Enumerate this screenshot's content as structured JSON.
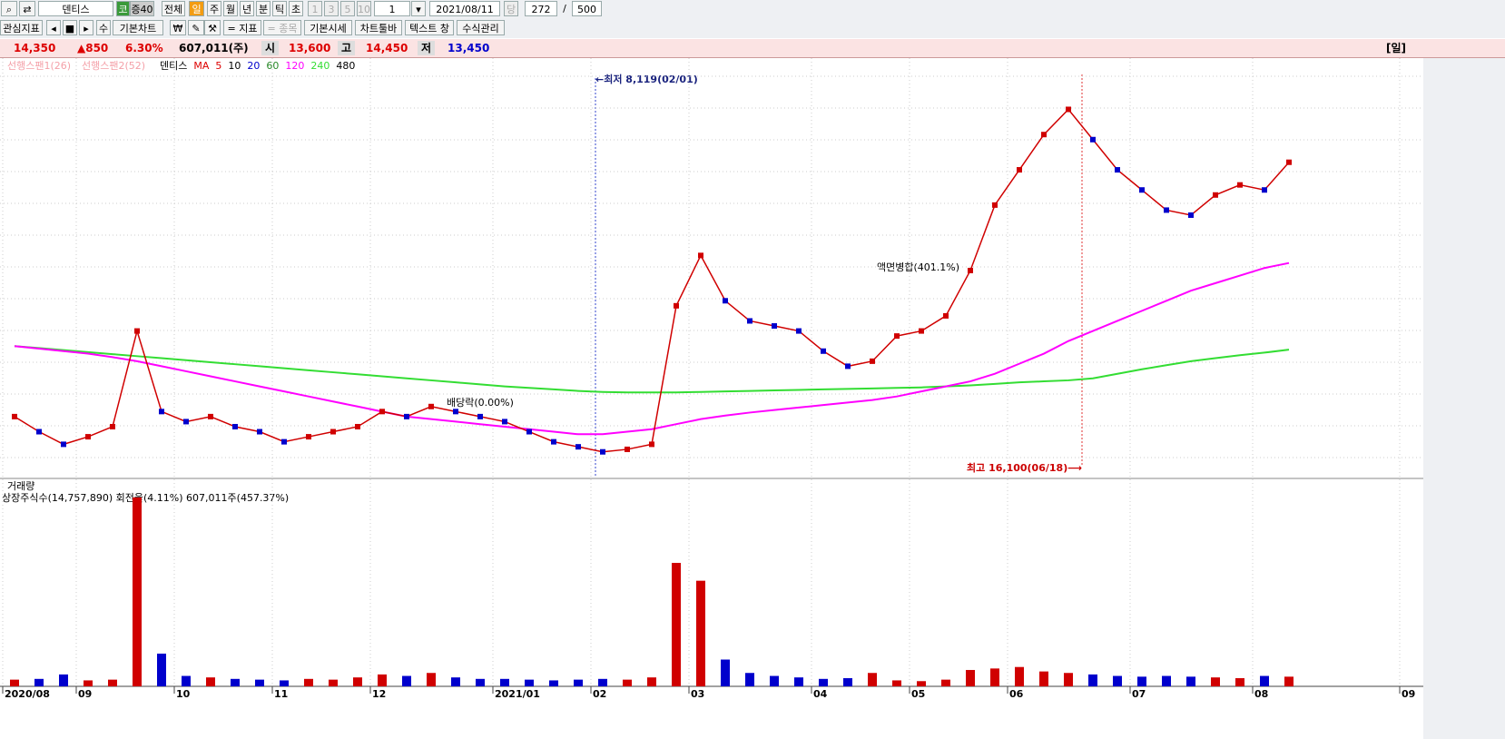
{
  "toolbar": {
    "row1": [
      "덴티스",
      "코",
      "증40",
      "전체",
      "일",
      "주",
      "월",
      "년",
      "분",
      "틱",
      "초",
      "1",
      "3",
      "5",
      "10",
      "1",
      "2021/08/11",
      "당",
      "272",
      "/",
      "500"
    ],
    "row2": [
      "관심지표",
      "수",
      "기본차트",
      "₩",
      "= 지표",
      "= 종목",
      "기본시세",
      "차트툴바",
      "텍스트 창",
      "수식관리"
    ]
  },
  "quote": {
    "price": "14,350",
    "change": "▲850",
    "rate": "6.30%",
    "volume": "607,011(주)",
    "open_label": "시",
    "open": "13,600",
    "high_label": "고",
    "high": "14,450",
    "low_label": "저",
    "low": "13,450",
    "period": "[일]"
  },
  "chart_data": {
    "type": "line",
    "categories": [
      "2020/08",
      null,
      null,
      "09",
      null,
      null,
      null,
      "10",
      null,
      null,
      null,
      "11",
      null,
      null,
      null,
      "12",
      null,
      null,
      null,
      null,
      "2021/01",
      null,
      null,
      null,
      "02",
      null,
      null,
      null,
      "03",
      null,
      null,
      null,
      null,
      "04",
      null,
      null,
      null,
      "05",
      null,
      null,
      null,
      "06",
      null,
      null,
      null,
      null,
      "07",
      null,
      null,
      null,
      null,
      "08",
      null,
      null,
      null,
      null,
      null,
      "09"
    ],
    "series": [
      {
        "name": "덴티스",
        "color": "#d00000",
        "values": [
          9300,
          9000,
          8750,
          8900,
          9100,
          11000,
          9400,
          9200,
          9300,
          9100,
          9000,
          8800,
          8900,
          9000,
          9100,
          9400,
          9300,
          9500,
          9400,
          9300,
          9200,
          9000,
          8800,
          8700,
          8600,
          8650,
          8750,
          11500,
          12500,
          11600,
          11200,
          11100,
          11000,
          10600,
          10300,
          10400,
          10900,
          11000,
          11300,
          12200,
          13500,
          14200,
          14900,
          15400,
          14800,
          14200,
          13800,
          13400,
          13300,
          13700,
          13900,
          13800,
          14350,
          null,
          null,
          null,
          null,
          null
        ]
      },
      {
        "name": "120",
        "color": "#ff00ff",
        "values": [
          10700,
          10650,
          10600,
          10550,
          10480,
          10400,
          10300,
          10200,
          10100,
          10000,
          9900,
          9800,
          9700,
          9600,
          9500,
          9400,
          9300,
          9250,
          9200,
          9150,
          9100,
          9050,
          9000,
          8950,
          8950,
          9000,
          9050,
          9150,
          9250,
          9320,
          9380,
          9430,
          9480,
          9530,
          9580,
          9630,
          9700,
          9800,
          9900,
          10000,
          10150,
          10350,
          10550,
          10800,
          11000,
          11200,
          11400,
          11600,
          11800,
          11950,
          12100,
          12250,
          12350,
          null,
          null,
          null,
          null,
          null
        ]
      },
      {
        "name": "240",
        "color": "#33dd33",
        "values": [
          10700,
          10660,
          10620,
          10580,
          10540,
          10500,
          10460,
          10420,
          10380,
          10340,
          10300,
          10260,
          10220,
          10180,
          10140,
          10100,
          10060,
          10020,
          9980,
          9940,
          9900,
          9870,
          9840,
          9810,
          9790,
          9780,
          9780,
          9780,
          9790,
          9800,
          9810,
          9820,
          9830,
          9840,
          9850,
          9860,
          9870,
          9880,
          9900,
          9920,
          9950,
          9980,
          10000,
          10020,
          10060,
          10150,
          10240,
          10320,
          10400,
          10460,
          10520,
          10570,
          10630,
          null,
          null,
          null,
          null,
          null
        ]
      }
    ],
    "ylim": [
      8000,
      16400
    ],
    "legend_other": {
      "span1": "선행스팬1(26)",
      "span2": "선행스팬2(52)",
      "ma": "MA",
      "ma5": "5",
      "ma10": "10",
      "ma20": "20",
      "ma60": "60",
      "ma480": "480"
    },
    "annotations": {
      "low": "←최저 8,119(02/01)",
      "high": "최고 16,100(06/18)⟶",
      "dividend": "배당락(0.00%)",
      "split": "액면병합(401.1%)"
    },
    "volume": {
      "title": "거래량",
      "info": "상장주식수(14,757,890) 회전율(4.11%) 607,011주(457.37%)",
      "up_color": "#d00000",
      "down_color": "#0000cc",
      "ylim": [
        0,
        13000000
      ],
      "values": [
        450000,
        500000,
        800000,
        400000,
        450000,
        12700000,
        2200000,
        700000,
        600000,
        500000,
        450000,
        400000,
        500000,
        450000,
        600000,
        800000,
        700000,
        900000,
        600000,
        500000,
        500000,
        450000,
        400000,
        450000,
        500000,
        450000,
        600000,
        8300000,
        7100000,
        1800000,
        900000,
        700000,
        600000,
        500000,
        550000,
        900000,
        400000,
        350000,
        450000,
        1100000,
        1200000,
        1300000,
        1000000,
        900000,
        800000,
        700000,
        650000,
        700000,
        650000,
        600000,
        550000,
        700000,
        650000,
        null,
        null,
        null,
        null,
        null
      ]
    }
  }
}
